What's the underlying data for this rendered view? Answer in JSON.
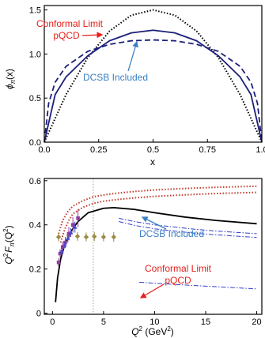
{
  "colors": {
    "dark_navy": "#1c1f7a",
    "dcsb_blue": "#3a7fc6",
    "annotation_red": "#e8201a",
    "dotted_red": "#c0392b",
    "dashdot_blue": "#3340c8",
    "data_olive": "#9a8b47",
    "data_purple": "#8d3d9a",
    "data_blue": "#4a4ad0",
    "vline_gray": "#888888"
  },
  "chart_data": [
    {
      "type": "line",
      "title": "",
      "xlabel": "x",
      "ylabel": "ϕπ(x)",
      "ylabel_main": "ϕ",
      "ylabel_sub": "π",
      "ylabel_args": "(x)",
      "xlim": [
        0,
        1
      ],
      "ylim": [
        0,
        1.55
      ],
      "xticks": [
        "0.0",
        "0.25",
        "0.5",
        "0.75",
        "1.0"
      ],
      "xtick_values": [
        0,
        0.25,
        0.5,
        0.75,
        1.0
      ],
      "yticks": [
        "0.0",
        "0.5",
        "1.0",
        "1.5"
      ],
      "ytick_values": [
        0,
        0.5,
        1.0,
        1.5
      ],
      "grid": false,
      "series": [
        {
          "style": "dotted",
          "color": "#000000",
          "formula": "6x(1-x)",
          "x": [
            0,
            0.1,
            0.2,
            0.3,
            0.4,
            0.5,
            0.6,
            0.7,
            0.8,
            0.9,
            1.0
          ],
          "y": [
            0,
            0.54,
            0.96,
            1.26,
            1.44,
            1.5,
            1.44,
            1.26,
            0.96,
            0.54,
            0
          ]
        },
        {
          "style": "solid",
          "color": "#1c1f7a",
          "x": [
            0,
            0.05,
            0.1,
            0.2,
            0.3,
            0.4,
            0.5,
            0.6,
            0.7,
            0.8,
            0.9,
            0.95,
            1.0
          ],
          "y": [
            0,
            0.54,
            0.74,
            0.98,
            1.15,
            1.24,
            1.27,
            1.24,
            1.15,
            0.98,
            0.74,
            0.54,
            0
          ]
        },
        {
          "style": "dashed",
          "color": "#1c1f7a",
          "x": [
            0,
            0.02,
            0.05,
            0.1,
            0.2,
            0.3,
            0.4,
            0.5,
            0.6,
            0.7,
            0.8,
            0.9,
            0.95,
            0.98,
            1.0
          ],
          "y": [
            0,
            0.44,
            0.68,
            0.86,
            1.03,
            1.11,
            1.15,
            1.16,
            1.15,
            1.11,
            1.03,
            0.86,
            0.68,
            0.44,
            0
          ]
        }
      ],
      "annotations": [
        {
          "text": "Conformal Limit",
          "color": "#e8201a"
        },
        {
          "text": "pQCD",
          "color": "#e8201a"
        },
        {
          "text": "DCSB Included",
          "color": "#3a7fc6"
        }
      ]
    },
    {
      "type": "line",
      "title": "",
      "xlabel": "Q2 (GeV2)",
      "xlabel_q": "Q",
      "xlabel_q_sup": "2",
      "xlabel_unit_open": " (GeV",
      "xlabel_unit_sup": "2",
      "xlabel_unit_close": ")",
      "ylabel": "Q2 Fπ(Q2)",
      "ylabel_q": "Q",
      "ylabel_q_sup": "2",
      "ylabel_f": "F",
      "ylabel_f_sub": "π",
      "ylabel_arg_open": "(Q",
      "ylabel_arg_sup": "2",
      "ylabel_arg_close": ")",
      "xlim": [
        -0.8,
        20.5
      ],
      "ylim": [
        -0.005,
        0.61
      ],
      "xticks": [
        "0",
        "5",
        "10",
        "15",
        "20"
      ],
      "xtick_values": [
        0,
        5,
        10,
        15,
        20
      ],
      "yticks": [
        "0",
        "0.2",
        "0.4",
        "0.6"
      ],
      "ytick_values": [
        0,
        0.2,
        0.4,
        0.6
      ],
      "grid": false,
      "vline_x": 4.0,
      "series": [
        {
          "style": "solid",
          "color": "#000000",
          "x": [
            0.3,
            0.5,
            0.8,
            1.2,
            1.8,
            2.5,
            3.5,
            5,
            6,
            8,
            10,
            13,
            16,
            20
          ],
          "y": [
            0.05,
            0.16,
            0.245,
            0.31,
            0.37,
            0.415,
            0.455,
            0.475,
            0.478,
            0.47,
            0.455,
            0.435,
            0.42,
            0.405
          ]
        },
        {
          "style": "dotted",
          "color": "#c0392b",
          "x": [
            0.6,
            1,
            1.5,
            2,
            3,
            4,
            5,
            6,
            8,
            10,
            13,
            16,
            20
          ],
          "y": [
            0.36,
            0.42,
            0.46,
            0.485,
            0.51,
            0.527,
            0.535,
            0.542,
            0.551,
            0.558,
            0.565,
            0.57,
            0.575
          ]
        },
        {
          "style": "dotted",
          "color": "#c0392b",
          "x": [
            0.8,
            1.2,
            1.6,
            2,
            3,
            4,
            5,
            6,
            8,
            10,
            13,
            16,
            20
          ],
          "y": [
            0.32,
            0.38,
            0.42,
            0.45,
            0.48,
            0.497,
            0.507,
            0.513,
            0.522,
            0.529,
            0.536,
            0.542,
            0.547
          ]
        },
        {
          "style": "dashdot",
          "color": "#3340c8",
          "x": [
            6.5,
            8,
            10,
            12,
            14,
            16,
            18,
            20
          ],
          "y": [
            0.43,
            0.415,
            0.4,
            0.39,
            0.38,
            0.372,
            0.366,
            0.36
          ]
        },
        {
          "style": "dashdot",
          "color": "#3340c8",
          "x": [
            6.5,
            8,
            10,
            12,
            14,
            16,
            18,
            20
          ],
          "y": [
            0.415,
            0.398,
            0.382,
            0.372,
            0.362,
            0.355,
            0.349,
            0.343
          ]
        },
        {
          "style": "dashdot",
          "color": "#3340c8",
          "x": [
            8.5,
            10,
            12,
            14,
            16,
            18,
            20
          ],
          "y": [
            0.14,
            0.136,
            0.13,
            0.125,
            0.12,
            0.115,
            0.11
          ]
        }
      ],
      "points": [
        {
          "color": "#9a8b47",
          "marker": "diamond",
          "x": [
            0.6,
            1.6,
            2.45,
            3.3,
            4.1,
            5.0,
            6.0
          ],
          "y": [
            0.345,
            0.35,
            0.348,
            0.345,
            0.347,
            0.345,
            0.345
          ],
          "err": [
            0.02,
            0.02,
            0.02,
            0.02,
            0.02,
            0.02,
            0.022
          ]
        },
        {
          "color": "#8d3d9a",
          "marker": "square",
          "x": [
            0.6,
            0.75,
            1.0,
            1.25,
            1.6,
            2.0,
            2.5
          ],
          "y": [
            0.23,
            0.27,
            0.3,
            0.32,
            0.36,
            0.4,
            0.43
          ],
          "err": [
            0.02,
            0.02,
            0.025,
            0.025,
            0.03,
            0.035,
            0.04
          ]
        },
        {
          "color": "#4a4ad0",
          "marker": "triangle",
          "x": [
            0.9,
            1.2,
            1.5,
            1.8,
            2.2
          ],
          "y": [
            0.28,
            0.31,
            0.34,
            0.365,
            0.39
          ],
          "err": [
            0.015,
            0.015,
            0.02,
            0.02,
            0.025
          ]
        }
      ],
      "annotations": [
        {
          "text": "DCSB Included",
          "color": "#3a7fc6"
        },
        {
          "text": "Conformal Limit",
          "color": "#e8201a"
        },
        {
          "text": "pQCD",
          "color": "#e8201a"
        }
      ]
    }
  ]
}
